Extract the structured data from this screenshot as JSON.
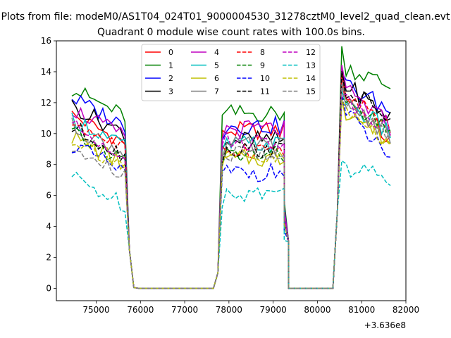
{
  "chart_data": {
    "type": "line",
    "suptitle": "Plots from file: modeM0/AS1T04_024T01_9000004530_31278cztM0_level2_quad_clean.evt",
    "title": "Quadrant 0 module wise count rates with 100.0s bins.",
    "xlabel": "",
    "ylabel": "",
    "x_offset_label": "+3.636e8",
    "xlim": [
      74100,
      82000
    ],
    "ylim": [
      -0.8,
      16
    ],
    "xticks": [
      75000,
      76000,
      77000,
      78000,
      79000,
      80000,
      81000,
      82000
    ],
    "yticks": [
      0,
      2,
      4,
      6,
      8,
      10,
      12,
      14,
      16
    ],
    "xtick_labels": [
      "75000",
      "76000",
      "77000",
      "78000",
      "79000",
      "80000",
      "81000",
      "82000"
    ],
    "ytick_labels": [
      "0",
      "2",
      "4",
      "6",
      "8",
      "10",
      "12",
      "14",
      "16"
    ],
    "segments": [
      {
        "start": 74450,
        "count": 13,
        "step": 100
      },
      {
        "start": 75750,
        "count": 2,
        "step": 100
      },
      {
        "start": 75950,
        "count": 18,
        "step": 100
      },
      {
        "start": 77650,
        "count": 2,
        "step": 100
      },
      {
        "start": 77850,
        "count": 15,
        "step": 100
      },
      {
        "start": 79250,
        "count": 2,
        "step": 100
      },
      {
        "start": 79350,
        "count": 10,
        "step": 100
      },
      {
        "start": 80350,
        "count": 2,
        "step": 100
      },
      {
        "start": 80550,
        "count": 12,
        "step": 100
      }
    ],
    "series": [
      {
        "name": "0",
        "color": "#ff0000",
        "dash": false,
        "base": [
          10.2,
          10.2,
          12.7,
          9.5
        ]
      },
      {
        "name": "1",
        "color": "#008000",
        "dash": false,
        "base": [
          11.9,
          11.3,
          14.5,
          13.0
        ]
      },
      {
        "name": "2",
        "color": "#0000ff",
        "dash": false,
        "base": [
          11.3,
          10.5,
          13.3,
          11.5
        ]
      },
      {
        "name": "3",
        "color": "#000000",
        "dash": false,
        "base": [
          10.8,
          9.6,
          13.3,
          11.0
        ]
      },
      {
        "name": "4",
        "color": "#bf00bf",
        "dash": false,
        "base": [
          10.6,
          10.3,
          13.0,
          10.5
        ]
      },
      {
        "name": "5",
        "color": "#00bfbf",
        "dash": false,
        "base": [
          10.0,
          9.3,
          12.3,
          10.0
        ]
      },
      {
        "name": "6",
        "color": "#bfbf00",
        "dash": false,
        "base": [
          8.8,
          8.4,
          11.7,
          9.5
        ]
      },
      {
        "name": "7",
        "color": "#808080",
        "dash": false,
        "base": [
          9.5,
          9.2,
          12.2,
          10.0
        ]
      },
      {
        "name": "8",
        "color": "#ff0000",
        "dash": true,
        "base": [
          9.8,
          9.0,
          12.5,
          10.5
        ]
      },
      {
        "name": "9",
        "color": "#008000",
        "dash": true,
        "base": [
          9.0,
          8.6,
          12.0,
          10.0
        ]
      },
      {
        "name": "10",
        "color": "#0000ff",
        "dash": true,
        "base": [
          8.3,
          7.5,
          11.5,
          8.5
        ]
      },
      {
        "name": "11",
        "color": "#000000",
        "dash": true,
        "base": [
          9.4,
          9.0,
          13.0,
          11.0
        ]
      },
      {
        "name": "12",
        "color": "#bf00bf",
        "dash": true,
        "base": [
          9.5,
          9.5,
          12.3,
          10.5
        ]
      },
      {
        "name": "13",
        "color": "#00bfbf",
        "dash": true,
        "base": [
          6.2,
          6.2,
          8.0,
          7.0
        ]
      },
      {
        "name": "14",
        "color": "#bfbf00",
        "dash": true,
        "base": [
          8.7,
          8.3,
          11.5,
          9.5
        ]
      },
      {
        "name": "15",
        "color": "#808080",
        "dash": true,
        "base": [
          8.0,
          8.7,
          12.0,
          10.0
        ]
      }
    ],
    "legend": {
      "location": "upper center",
      "ncol": 4
    }
  }
}
